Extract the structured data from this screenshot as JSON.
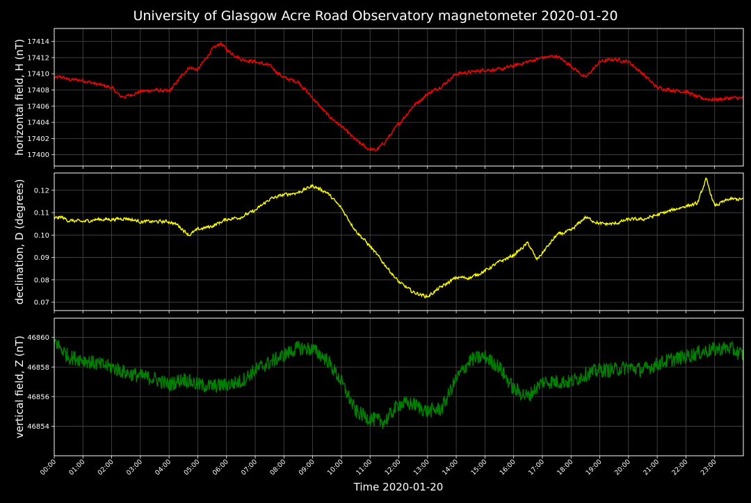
{
  "chart_data": {
    "title": "University of Glasgow Acre Road Observatory magnetometer 2020-01-20",
    "xlabel": "Time 2020-01-20",
    "x_ticks": [
      "00:00",
      "01:00",
      "02:00",
      "03:00",
      "04:00",
      "05:00",
      "06:00",
      "07:00",
      "08:00",
      "09:00",
      "10:00",
      "11:00",
      "12:00",
      "13:00",
      "14:00",
      "15:00",
      "16:00",
      "17:00",
      "18:00",
      "19:00",
      "20:00",
      "21:00",
      "22:00",
      "23:00"
    ],
    "x_range_hours": [
      0,
      24
    ],
    "grid": true,
    "panels": [
      {
        "type": "line",
        "ylabel": "horizontal field, H (nT)",
        "color": "#ff0000",
        "ylim": [
          17398.6,
          17415.6
        ],
        "y_ticks": [
          "17400",
          "17402",
          "17404",
          "17406",
          "17408",
          "17410",
          "17412",
          "17414"
        ],
        "y_tick_values": [
          17400,
          17402,
          17404,
          17406,
          17408,
          17410,
          17412,
          17414
        ],
        "noise": 0.35,
        "x": [
          0,
          0.25,
          0.5,
          1,
          1.5,
          2,
          2.3,
          2.5,
          3,
          3.5,
          4,
          4.5,
          4.7,
          5,
          5.5,
          5.8,
          6,
          6.5,
          7,
          7.5,
          8,
          8.5,
          9,
          9.5,
          10,
          10.5,
          10.9,
          11.2,
          11.5,
          12,
          12.5,
          13,
          13.5,
          14,
          14.5,
          15,
          15.5,
          16,
          16.5,
          17,
          17.5,
          18,
          18.5,
          19,
          19.5,
          20,
          20.5,
          21,
          21.5,
          22,
          22.5,
          23,
          23.5,
          23.99
        ],
        "y": [
          17409.5,
          17409.6,
          17409.3,
          17409.2,
          17408.7,
          17408.3,
          17407.2,
          17407.2,
          17407.8,
          17408.0,
          17407.8,
          17410.0,
          17410.8,
          17410.5,
          17413.0,
          17413.8,
          17413.0,
          17411.8,
          17411.5,
          17411.0,
          17409.5,
          17409.0,
          17407.0,
          17405.0,
          17403.5,
          17401.8,
          17400.8,
          17400.5,
          17401.5,
          17403.8,
          17406.0,
          17407.5,
          17408.5,
          17410.0,
          17410.2,
          17410.5,
          17410.5,
          17411.0,
          17411.5,
          17412.0,
          17412.2,
          17411.0,
          17409.5,
          17411.5,
          17411.8,
          17411.5,
          17410.0,
          17408.3,
          17408.0,
          17407.8,
          17407.0,
          17406.8,
          17407.0,
          17407.0
        ]
      },
      {
        "type": "line",
        "ylabel": "declination, D (degrees)",
        "color": "#ffff00",
        "ylim": [
          0.0663,
          0.1277
        ],
        "y_ticks": [
          "0.07",
          "0.08",
          "0.09",
          "0.10",
          "0.11",
          "0.12"
        ],
        "y_tick_values": [
          0.07,
          0.08,
          0.09,
          0.1,
          0.11,
          0.12
        ],
        "noise": 0.0012,
        "x": [
          0,
          0.25,
          0.5,
          1,
          1.5,
          2,
          2.5,
          3,
          3.5,
          4,
          4.3,
          4.7,
          5,
          5.5,
          6,
          6.5,
          7,
          7.5,
          8,
          8.5,
          9,
          9.5,
          10,
          10.5,
          11,
          11.5,
          12,
          12.5,
          13,
          13.5,
          14,
          14.5,
          15,
          15.5,
          16,
          16.5,
          16.8,
          17,
          17.5,
          18,
          18.5,
          19,
          19.5,
          20,
          20.5,
          21,
          21.5,
          22,
          22.4,
          22.7,
          23,
          23.5,
          23.99
        ],
        "y": [
          0.1075,
          0.108,
          0.1065,
          0.106,
          0.107,
          0.107,
          0.1075,
          0.106,
          0.106,
          0.106,
          0.1045,
          0.1,
          0.1025,
          0.104,
          0.107,
          0.108,
          0.111,
          0.116,
          0.118,
          0.119,
          0.122,
          0.119,
          0.112,
          0.102,
          0.095,
          0.087,
          0.079,
          0.0745,
          0.0725,
          0.077,
          0.081,
          0.081,
          0.084,
          0.088,
          0.091,
          0.0965,
          0.089,
          0.092,
          0.1,
          0.102,
          0.108,
          0.105,
          0.105,
          0.107,
          0.107,
          0.109,
          0.111,
          0.113,
          0.114,
          0.125,
          0.113,
          0.116,
          0.116
        ]
      },
      {
        "type": "line",
        "ylabel": "vertical field, Z (nT)",
        "color": "#008000",
        "ylim": [
          46852.0,
          46861.3
        ],
        "y_ticks": [
          "46854",
          "46856",
          "46858",
          "46860"
        ],
        "y_tick_values": [
          46854,
          46856,
          46858,
          46860
        ],
        "noise": 0.5,
        "x": [
          0,
          0.25,
          0.5,
          1,
          1.5,
          2,
          2.5,
          3,
          3.5,
          4,
          4.5,
          5,
          5.5,
          6,
          6.5,
          7,
          7.5,
          8,
          8.5,
          9,
          9.5,
          10,
          10.5,
          11,
          11.5,
          12,
          12.5,
          13,
          13.5,
          14,
          14.5,
          15,
          15.5,
          16,
          16.5,
          17,
          17.5,
          18,
          18.5,
          19,
          19.5,
          20,
          20.5,
          21,
          21.5,
          22,
          22.5,
          23,
          23.5,
          23.99
        ],
        "y": [
          46859.8,
          46859.2,
          46858.7,
          46858.5,
          46858.2,
          46858.0,
          46857.6,
          46857.4,
          46857.2,
          46856.8,
          46857.2,
          46856.8,
          46856.7,
          46856.8,
          46857.0,
          46857.8,
          46858.3,
          46858.8,
          46859.3,
          46859.2,
          46858.5,
          46857.0,
          46855.0,
          46854.5,
          46854.3,
          46855.5,
          46855.5,
          46855.0,
          46855.2,
          46857.2,
          46858.5,
          46858.7,
          46858.0,
          46856.5,
          46856.0,
          46857.0,
          46857.0,
          46857.0,
          46857.5,
          46857.8,
          46857.8,
          46858.0,
          46857.8,
          46858.2,
          46858.5,
          46858.7,
          46859.0,
          46859.2,
          46859.3,
          46858.8
        ]
      }
    ]
  }
}
